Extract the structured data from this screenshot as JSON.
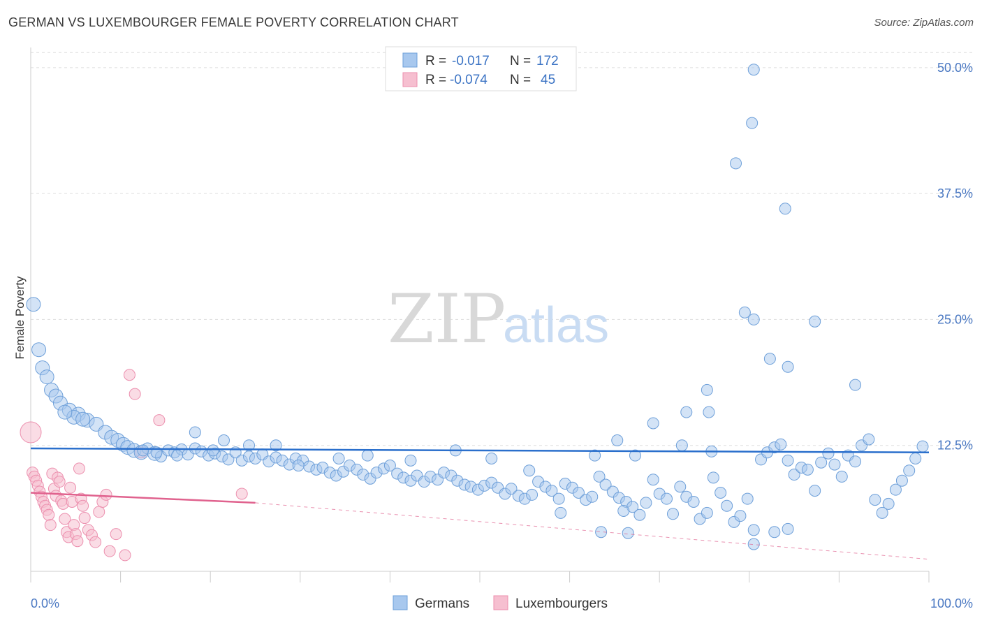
{
  "title": "GERMAN VS LUXEMBOURGER FEMALE POVERTY CORRELATION CHART",
  "source": "Source: ZipAtlas.com",
  "watermark": {
    "zip": "ZIP",
    "atlas": "atlas"
  },
  "colors": {
    "german_fill": "#a8c8ee",
    "german_stroke": "#6d9fd9",
    "german_line": "#2a6fcc",
    "lux_fill": "#f6bfd0",
    "lux_stroke": "#ec8fae",
    "lux_line": "#e0628e",
    "grid": "#dddddd",
    "tick": "#4a78c2"
  },
  "legend_top": {
    "rows": [
      {
        "r_label": "R = ",
        "r_value": "-0.017",
        "n_label": "N = ",
        "n_value": "172"
      },
      {
        "r_label": "R = ",
        "r_value": "-0.074",
        "n_label": "N = ",
        "n_value": "45"
      }
    ]
  },
  "legend_bottom": [
    "Germans",
    "Luxembourgers"
  ],
  "chart_data": {
    "type": "scatter",
    "title": "GERMAN VS LUXEMBOURGER FEMALE POVERTY CORRELATION CHART",
    "xlabel": "",
    "ylabel": "Female Poverty",
    "xlim": [
      0,
      100
    ],
    "ylim": [
      0,
      52
    ],
    "x_tick_labels": [
      "0.0%",
      "100.0%"
    ],
    "y_ticks": [
      12.5,
      25.0,
      37.5,
      50.0
    ],
    "y_tick_labels": [
      "12.5%",
      "25.0%",
      "37.5%",
      "50.0%"
    ],
    "grid": "horizontal dashed",
    "legend_position": "top-center",
    "series": [
      {
        "name": "Germans",
        "R": -0.017,
        "N": 172,
        "trend": {
          "x": [
            0,
            100
          ],
          "y": [
            12.2,
            11.8
          ],
          "style": "solid"
        },
        "points": [
          [
            0.3,
            26.5,
            "l"
          ],
          [
            0.9,
            22,
            "l"
          ],
          [
            1.3,
            20.2,
            "l"
          ],
          [
            1.8,
            19.3,
            "l"
          ],
          [
            2.3,
            18.0,
            "l"
          ],
          [
            2.8,
            17.4,
            "l"
          ],
          [
            3.3,
            16.7,
            "l"
          ],
          [
            4.3,
            16.0,
            "l"
          ],
          [
            5.3,
            15.6,
            "l"
          ],
          [
            6.3,
            15.0,
            "l"
          ],
          [
            7.3,
            14.6,
            "l"
          ],
          [
            4.8,
            15.3,
            "l"
          ],
          [
            5.8,
            15.1,
            "l"
          ],
          [
            3.8,
            15.8,
            "l"
          ],
          [
            8.3,
            13.8,
            "l"
          ],
          [
            9.0,
            13.3,
            "l"
          ],
          [
            9.7,
            13.0,
            "l"
          ],
          [
            10.3,
            12.6,
            "l"
          ],
          [
            10.8,
            12.3,
            "l"
          ],
          [
            11.5,
            12.0,
            "l"
          ],
          [
            12.3,
            11.8,
            "l"
          ],
          [
            13.0,
            12.2,
            "m"
          ],
          [
            13.8,
            11.7,
            "l"
          ],
          [
            14.5,
            11.4,
            "m"
          ],
          [
            15.3,
            12.0,
            "m"
          ],
          [
            16.0,
            11.8,
            "m"
          ],
          [
            16.8,
            12.1,
            "m"
          ],
          [
            17.5,
            11.6,
            "m"
          ],
          [
            18.3,
            12.2,
            "m"
          ],
          [
            19.0,
            11.9,
            "m"
          ],
          [
            19.8,
            11.5,
            "m"
          ],
          [
            20.5,
            11.7,
            "m"
          ],
          [
            21.3,
            11.4,
            "m"
          ],
          [
            22.0,
            11.1,
            "m"
          ],
          [
            22.8,
            11.8,
            "m"
          ],
          [
            23.5,
            11.0,
            "m"
          ],
          [
            24.3,
            11.4,
            "m"
          ],
          [
            25.0,
            11.2,
            "m"
          ],
          [
            25.8,
            11.6,
            "m"
          ],
          [
            26.5,
            10.9,
            "m"
          ],
          [
            27.3,
            11.3,
            "m"
          ],
          [
            28.0,
            11.0,
            "m"
          ],
          [
            28.8,
            10.6,
            "m"
          ],
          [
            29.5,
            11.2,
            "m"
          ],
          [
            30.3,
            11.0,
            "m"
          ],
          [
            31.0,
            10.4,
            "m"
          ],
          [
            31.8,
            10.1,
            "m"
          ],
          [
            32.5,
            10.3,
            "m"
          ],
          [
            33.3,
            9.8,
            "m"
          ],
          [
            34.0,
            9.5,
            "m"
          ],
          [
            34.8,
            9.9,
            "m"
          ],
          [
            35.5,
            10.5,
            "m"
          ],
          [
            36.3,
            10.1,
            "m"
          ],
          [
            37.0,
            9.6,
            "m"
          ],
          [
            37.8,
            9.2,
            "m"
          ],
          [
            38.5,
            9.8,
            "m"
          ],
          [
            39.3,
            10.2,
            "m"
          ],
          [
            40.0,
            10.5,
            "m"
          ],
          [
            40.8,
            9.7,
            "m"
          ],
          [
            41.5,
            9.3,
            "m"
          ],
          [
            42.3,
            9.0,
            "m"
          ],
          [
            43.0,
            9.5,
            "m"
          ],
          [
            43.8,
            8.9,
            "m"
          ],
          [
            44.5,
            9.4,
            "m"
          ],
          [
            45.3,
            9.1,
            "m"
          ],
          [
            46.0,
            9.8,
            "m"
          ],
          [
            46.8,
            9.5,
            "m"
          ],
          [
            47.5,
            9.0,
            "m"
          ],
          [
            48.3,
            8.6,
            "m"
          ],
          [
            49.0,
            8.4,
            "m"
          ],
          [
            49.8,
            8.1,
            "m"
          ],
          [
            50.5,
            8.5,
            "m"
          ],
          [
            51.3,
            8.8,
            "m"
          ],
          [
            52.0,
            8.3,
            "m"
          ],
          [
            52.8,
            7.7,
            "m"
          ],
          [
            53.5,
            8.2,
            "m"
          ],
          [
            54.3,
            7.5,
            "m"
          ],
          [
            55.0,
            7.2,
            "m"
          ],
          [
            55.8,
            7.6,
            "m"
          ],
          [
            56.5,
            8.9,
            "m"
          ],
          [
            57.3,
            8.4,
            "m"
          ],
          [
            58.0,
            8.0,
            "m"
          ],
          [
            58.8,
            7.2,
            "m"
          ],
          [
            59.5,
            8.7,
            "m"
          ],
          [
            60.3,
            8.3,
            "m"
          ],
          [
            61.0,
            7.8,
            "m"
          ],
          [
            61.8,
            7.1,
            "m"
          ],
          [
            62.5,
            7.4,
            "m"
          ],
          [
            63.3,
            9.4,
            "m"
          ],
          [
            64.0,
            8.6,
            "m"
          ],
          [
            64.8,
            7.9,
            "m"
          ],
          [
            65.5,
            7.3,
            "m"
          ],
          [
            66.3,
            6.9,
            "m"
          ],
          [
            67.0,
            6.4,
            "m"
          ],
          [
            67.8,
            5.6,
            "m"
          ],
          [
            68.5,
            6.8,
            "m"
          ],
          [
            69.3,
            9.1,
            "m"
          ],
          [
            70.0,
            7.7,
            "m"
          ],
          [
            70.8,
            7.2,
            "m"
          ],
          [
            71.5,
            5.7,
            "m"
          ],
          [
            72.3,
            8.4,
            "m"
          ],
          [
            73.0,
            7.4,
            "m"
          ],
          [
            73.8,
            6.9,
            "m"
          ],
          [
            74.5,
            5.2,
            "m"
          ],
          [
            75.3,
            5.8,
            "m"
          ],
          [
            76.0,
            9.3,
            "m"
          ],
          [
            76.8,
            7.8,
            "m"
          ],
          [
            77.5,
            6.5,
            "m"
          ],
          [
            78.3,
            4.9,
            "m"
          ],
          [
            79.0,
            5.5,
            "m"
          ],
          [
            79.8,
            7.2,
            "m"
          ],
          [
            80.5,
            4.1,
            "m"
          ],
          [
            81.3,
            11.1,
            "m"
          ],
          [
            82.0,
            11.8,
            "m"
          ],
          [
            82.8,
            12.3,
            "m"
          ],
          [
            83.5,
            12.6,
            "m"
          ],
          [
            84.3,
            11.0,
            "m"
          ],
          [
            85.0,
            9.6,
            "m"
          ],
          [
            85.8,
            10.3,
            "m"
          ],
          [
            86.5,
            10.1,
            "m"
          ],
          [
            87.3,
            8.0,
            "m"
          ],
          [
            88.0,
            10.8,
            "m"
          ],
          [
            88.8,
            11.7,
            "m"
          ],
          [
            89.5,
            10.6,
            "m"
          ],
          [
            90.3,
            9.4,
            "m"
          ],
          [
            91.0,
            11.5,
            "m"
          ],
          [
            91.8,
            10.9,
            "m"
          ],
          [
            92.5,
            12.5,
            "m"
          ],
          [
            93.3,
            13.1,
            "m"
          ],
          [
            94.0,
            7.1,
            "m"
          ],
          [
            94.8,
            5.8,
            "m"
          ],
          [
            95.5,
            6.7,
            "m"
          ],
          [
            96.3,
            8.1,
            "m"
          ],
          [
            97.0,
            9.0,
            "m"
          ],
          [
            97.8,
            10.0,
            "m"
          ],
          [
            98.5,
            11.2,
            "m"
          ],
          [
            99.3,
            12.4,
            "m"
          ],
          [
            80.5,
            49.8,
            "m"
          ],
          [
            80.5,
            2.7,
            "m"
          ],
          [
            80.3,
            44.5,
            "m"
          ],
          [
            78.5,
            40.5,
            "m"
          ],
          [
            84.0,
            36.0,
            "m"
          ],
          [
            79.5,
            25.7,
            "m"
          ],
          [
            80.5,
            25.0,
            "m"
          ],
          [
            87.3,
            24.8,
            "m"
          ],
          [
            82.3,
            21.1,
            "m"
          ],
          [
            84.3,
            20.3,
            "m"
          ],
          [
            91.8,
            18.5,
            "m"
          ],
          [
            75.3,
            18.0,
            "m"
          ],
          [
            73.0,
            15.8,
            "m"
          ],
          [
            75.5,
            15.8,
            "m"
          ],
          [
            69.3,
            14.7,
            "m"
          ],
          [
            65.3,
            13.0,
            "m"
          ],
          [
            72.5,
            12.5,
            "m"
          ],
          [
            75.8,
            11.9,
            "m"
          ],
          [
            67.3,
            11.5,
            "m"
          ],
          [
            62.8,
            11.5,
            "m"
          ],
          [
            55.5,
            10.0,
            "m"
          ],
          [
            51.3,
            11.2,
            "m"
          ],
          [
            47.3,
            12.0,
            "m"
          ],
          [
            42.3,
            11.0,
            "m"
          ],
          [
            37.5,
            11.5,
            "m"
          ],
          [
            34.3,
            11.2,
            "m"
          ],
          [
            29.8,
            10.5,
            "m"
          ],
          [
            27.3,
            12.5,
            "m"
          ],
          [
            24.3,
            12.5,
            "m"
          ],
          [
            21.5,
            13.0,
            "m"
          ],
          [
            20.3,
            12.0,
            "m"
          ],
          [
            18.3,
            13.8,
            "m"
          ],
          [
            16.3,
            11.5,
            "m"
          ],
          [
            14.0,
            11.8,
            "m"
          ],
          [
            12.5,
            12.0,
            "m"
          ],
          [
            66.0,
            6.0,
            "m"
          ],
          [
            59.0,
            5.8,
            "m"
          ],
          [
            63.5,
            3.9,
            "m"
          ],
          [
            66.5,
            3.8,
            "m"
          ],
          [
            82.8,
            3.9,
            "m"
          ],
          [
            84.3,
            4.2,
            "m"
          ]
        ]
      },
      {
        "name": "Luxembourgers",
        "R": -0.074,
        "N": 45,
        "trend": {
          "x": [
            0,
            25
          ],
          "y": [
            7.8,
            6.8
          ],
          "style": "solid",
          "extension": {
            "x": [
              25,
              100
            ],
            "y": [
              6.8,
              1.2
            ],
            "style": "dashed"
          }
        },
        "points": [
          [
            0.0,
            13.8,
            "xl"
          ],
          [
            0.2,
            9.8,
            "m"
          ],
          [
            0.4,
            9.4,
            "m"
          ],
          [
            0.6,
            9.0,
            "m"
          ],
          [
            0.8,
            8.5,
            "m"
          ],
          [
            1.0,
            7.9,
            "m"
          ],
          [
            1.2,
            7.4,
            "m"
          ],
          [
            1.4,
            6.9,
            "m"
          ],
          [
            1.6,
            6.5,
            "m"
          ],
          [
            1.8,
            6.1,
            "m"
          ],
          [
            2.0,
            5.6,
            "m"
          ],
          [
            2.2,
            4.6,
            "m"
          ],
          [
            2.4,
            9.7,
            "m"
          ],
          [
            2.6,
            8.2,
            "m"
          ],
          [
            2.8,
            7.5,
            "m"
          ],
          [
            3.0,
            9.3,
            "m"
          ],
          [
            3.2,
            8.9,
            "m"
          ],
          [
            3.4,
            7.0,
            "m"
          ],
          [
            3.6,
            6.7,
            "m"
          ],
          [
            3.8,
            5.2,
            "m"
          ],
          [
            4.0,
            3.9,
            "m"
          ],
          [
            4.2,
            3.4,
            "m"
          ],
          [
            4.4,
            8.3,
            "m"
          ],
          [
            4.6,
            6.9,
            "m"
          ],
          [
            4.8,
            4.6,
            "m"
          ],
          [
            5.0,
            3.7,
            "m"
          ],
          [
            5.2,
            3.0,
            "m"
          ],
          [
            5.4,
            10.2,
            "m"
          ],
          [
            5.6,
            7.2,
            "m"
          ],
          [
            5.8,
            6.5,
            "m"
          ],
          [
            6.0,
            5.3,
            "m"
          ],
          [
            6.4,
            4.1,
            "m"
          ],
          [
            6.8,
            3.6,
            "m"
          ],
          [
            7.2,
            2.9,
            "m"
          ],
          [
            7.6,
            5.9,
            "m"
          ],
          [
            8.0,
            6.9,
            "m"
          ],
          [
            8.4,
            7.6,
            "m"
          ],
          [
            8.8,
            2.0,
            "m"
          ],
          [
            9.5,
            3.7,
            "m"
          ],
          [
            10.5,
            1.6,
            "m"
          ],
          [
            11.0,
            19.5,
            "m"
          ],
          [
            11.6,
            17.6,
            "m"
          ],
          [
            12.3,
            11.8,
            "m"
          ],
          [
            14.3,
            15.0,
            "m"
          ],
          [
            23.5,
            7.7,
            "m"
          ]
        ]
      }
    ]
  }
}
